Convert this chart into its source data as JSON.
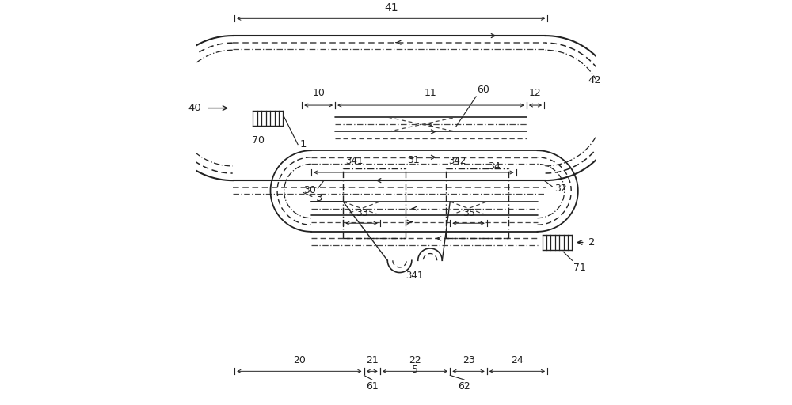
{
  "bg_color": "#ffffff",
  "line_color": "#222222",
  "dash_color": "#444444",
  "fig_width": 10.0,
  "fig_height": 5.12
}
